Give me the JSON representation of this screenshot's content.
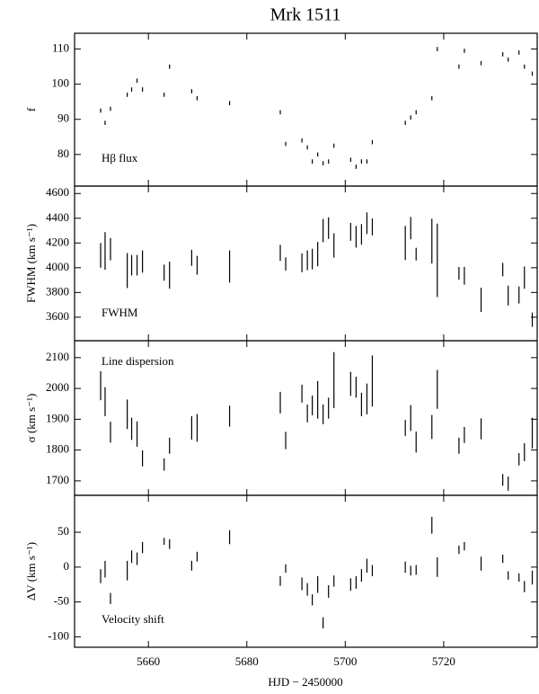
{
  "chart_data": [
    {
      "type": "errorbar",
      "title": "Mrk 1511",
      "ylabel": "f",
      "annotation": "Hβ flux",
      "color": "#000000",
      "x": [
        5650.3,
        5651.2,
        5652.3,
        5655.7,
        5656.6,
        5657.7,
        5658.8,
        5663.2,
        5664.3,
        5668.8,
        5669.9,
        5676.5,
        5686.8,
        5687.9,
        5691.2,
        5692.3,
        5693.3,
        5694.4,
        5695.5,
        5696.6,
        5697.7,
        5701.1,
        5702.2,
        5703.3,
        5704.4,
        5705.5,
        5712.2,
        5713.3,
        5714.4,
        5717.6,
        5718.7,
        5723.1,
        5724.2,
        5727.6,
        5732.0,
        5733.1,
        5735.3,
        5736.4,
        5738.0
      ],
      "values": [
        92.5,
        89,
        93,
        97,
        98.5,
        101,
        98.5,
        97,
        105,
        98,
        96,
        94.6,
        92,
        83,
        84,
        82,
        78,
        80,
        77.5,
        78,
        82.5,
        78.5,
        76.5,
        78,
        78,
        83.5,
        89,
        90.5,
        92,
        96,
        110,
        105,
        109.5,
        106,
        108.5,
        107,
        109,
        105,
        103
      ],
      "errors": [
        0.6,
        0.6,
        0.6,
        0.6,
        0.6,
        0.6,
        0.6,
        0.6,
        0.6,
        0.6,
        0.6,
        0.6,
        0.6,
        0.6,
        0.6,
        0.6,
        0.6,
        0.6,
        0.6,
        0.6,
        0.6,
        0.6,
        0.6,
        0.6,
        0.6,
        0.6,
        0.6,
        0.6,
        0.6,
        0.6,
        0.6,
        0.6,
        0.6,
        0.6,
        0.6,
        0.6,
        0.6,
        0.6,
        0.6
      ],
      "xlim": [
        5645,
        5739
      ],
      "xticks": [
        5660,
        5680,
        5700,
        5720
      ],
      "ylim": [
        71,
        114.5
      ],
      "yticks": [
        80,
        90,
        100,
        110
      ]
    },
    {
      "type": "errorbar",
      "ylabel": "FWHM (km s⁻¹)",
      "annotation": "FWHM",
      "color": "#000000",
      "x": [
        5650.3,
        5651.2,
        5652.3,
        5655.7,
        5656.6,
        5657.7,
        5658.8,
        5663.2,
        5664.3,
        5668.8,
        5669.9,
        5676.5,
        5686.8,
        5687.9,
        5691.2,
        5692.3,
        5693.3,
        5694.4,
        5695.5,
        5696.6,
        5697.7,
        5701.1,
        5702.2,
        5703.3,
        5704.4,
        5705.5,
        5712.2,
        5713.3,
        5714.4,
        5717.6,
        5718.7,
        5723.1,
        5724.2,
        5727.6,
        5732.0,
        5733.1,
        5735.3,
        5736.4,
        5738.0
      ],
      "values": [
        4100,
        4136,
        4150,
        3977,
        4020,
        4020,
        4050,
        3960,
        3940,
        4080,
        4020,
        4010,
        4120,
        4030,
        4040,
        4060,
        4070,
        4110,
        4300,
        4320,
        4180,
        4290,
        4250,
        4270,
        4360,
        4330,
        4200,
        4320,
        4110,
        4215,
        4060,
        3955,
        3935,
        3740,
        3985,
        3775,
        3780,
        3920,
        3580
      ],
      "errors": [
        100,
        152,
        90,
        141,
        83,
        83,
        90,
        65,
        109,
        65,
        76,
        130,
        65,
        54,
        76,
        80,
        83,
        98,
        94,
        87,
        98,
        72,
        87,
        83,
        87,
        69,
        138,
        90,
        51,
        181,
        297,
        51,
        72,
        98,
        54,
        80,
        69,
        90,
        58
      ],
      "xlim": [
        5645,
        5739
      ],
      "xticks": [
        5660,
        5680,
        5700,
        5720
      ],
      "ylim": [
        3410,
        4660
      ],
      "yticks": [
        3600,
        3800,
        4000,
        4200,
        4400,
        4600
      ]
    },
    {
      "type": "errorbar",
      "ylabel": "σ (km s⁻¹)",
      "annotation": "Line dispersion",
      "color": "#000000",
      "x": [
        5650.3,
        5651.2,
        5652.3,
        5655.7,
        5656.6,
        5657.7,
        5658.8,
        5663.2,
        5664.3,
        5668.8,
        5669.9,
        5676.5,
        5686.8,
        5687.9,
        5691.2,
        5692.3,
        5693.3,
        5694.4,
        5695.5,
        5696.6,
        5697.7,
        5701.1,
        5702.2,
        5703.3,
        5704.4,
        5705.5,
        5712.2,
        5713.3,
        5714.4,
        5717.6,
        5718.7,
        5723.1,
        5724.2,
        5727.6,
        5732.0,
        5733.1,
        5735.3,
        5736.4,
        5738.0
      ],
      "values": [
        2009,
        1957,
        1858,
        1916,
        1869,
        1852,
        1773,
        1753,
        1814,
        1872,
        1872,
        1910,
        1954,
        1831,
        1983,
        1919,
        1945,
        1963,
        1916,
        1936,
        2027,
        2015,
        2004,
        1948,
        1966,
        2024,
        1872,
        1904,
        1826,
        1875,
        1997,
        1814,
        1849,
        1869,
        1703,
        1691,
        1770,
        1793,
        1855
      ],
      "errors": [
        47,
        47,
        34,
        48,
        36,
        41,
        26,
        20,
        26,
        38,
        45,
        34,
        35,
        28,
        29,
        29,
        32,
        61,
        32,
        34,
        91,
        39,
        34,
        38,
        50,
        83,
        26,
        42,
        34,
        39,
        63,
        26,
        26,
        34,
        19,
        23,
        20,
        29,
        50
      ],
      "xlim": [
        5645,
        5739
      ],
      "xticks": [
        5660,
        5680,
        5700,
        5720
      ],
      "ylim": [
        1653,
        2155
      ],
      "yticks": [
        1700,
        1800,
        1900,
        2000,
        2100
      ]
    },
    {
      "type": "errorbar",
      "ylabel": "ΔV (km s⁻¹)",
      "annotation": "Velocity shift",
      "xlabel": "HJD − 2450000",
      "color": "#000000",
      "x": [
        5650.3,
        5651.2,
        5652.3,
        5655.7,
        5656.6,
        5657.7,
        5658.8,
        5663.2,
        5664.3,
        5668.8,
        5669.9,
        5676.5,
        5686.8,
        5687.9,
        5691.2,
        5692.3,
        5693.3,
        5694.4,
        5695.5,
        5696.6,
        5697.7,
        5701.1,
        5702.2,
        5703.3,
        5704.4,
        5705.5,
        5712.2,
        5713.3,
        5714.4,
        5717.6,
        5718.7,
        5723.1,
        5724.2,
        5727.6,
        5732.0,
        5733.1,
        5735.3,
        5736.4,
        5738.0
      ],
      "values": [
        -13,
        -3,
        -45,
        -5,
        15,
        12,
        28,
        37,
        33,
        2,
        15,
        43,
        -20,
        -2,
        -24,
        -32,
        -47,
        -25,
        -80,
        -35,
        -20,
        -25,
        -22,
        -12,
        2,
        -5,
        0,
        -5,
        -4,
        60,
        0,
        25,
        30,
        5,
        12,
        -12,
        -15,
        -28,
        -15
      ],
      "errors": [
        10,
        12,
        8,
        14,
        9,
        9,
        8,
        5,
        7,
        7,
        7,
        10,
        7,
        6,
        9,
        9,
        8,
        12,
        8,
        9,
        8,
        9,
        9,
        9,
        10,
        8,
        8,
        7,
        7,
        12,
        14,
        6,
        6,
        10,
        6,
        6,
        6,
        8,
        10
      ],
      "xlim": [
        5645,
        5739
      ],
      "xticks": [
        5660,
        5680,
        5700,
        5720
      ],
      "ylim": [
        -115,
        103
      ],
      "yticks": [
        -100,
        -50,
        0,
        50
      ]
    }
  ]
}
